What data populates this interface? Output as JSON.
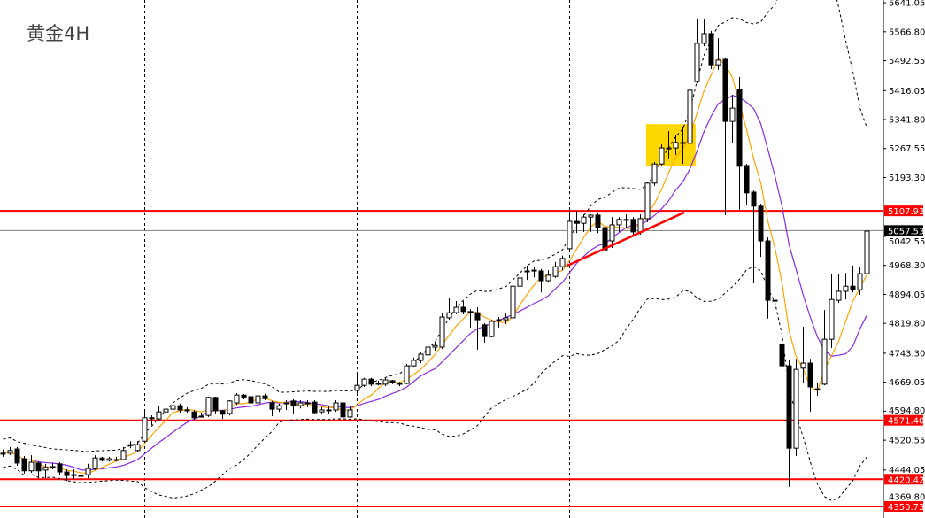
{
  "title": "黄金4H",
  "chart_data": {
    "type": "candlestick",
    "title": "黄金4H",
    "ylim": [
      4344,
      5648
    ],
    "y_ticks": [
      "5641.05",
      "5566.80",
      "5492.55",
      "5416.05",
      "5341.80",
      "5267.55",
      "5193.30",
      "5042.55",
      "4968.30",
      "4894.05",
      "4819.80",
      "4743.30",
      "4669.05",
      "4594.80",
      "4520.55",
      "4444.05",
      "4369.80"
    ],
    "candles_ohlc": [
      [
        4487,
        4496,
        4478,
        4487
      ],
      [
        4487,
        4503,
        4482,
        4494
      ],
      [
        4498,
        4503,
        4455,
        4462
      ],
      [
        4473,
        4480,
        4435,
        4442
      ],
      [
        4442,
        4482,
        4437,
        4464
      ],
      [
        4462,
        4466,
        4423,
        4442
      ],
      [
        4444,
        4460,
        4423,
        4451
      ],
      [
        4453,
        4462,
        4446,
        4453
      ],
      [
        4460,
        4464,
        4432,
        4439
      ],
      [
        4439,
        4446,
        4416,
        4430
      ],
      [
        4432,
        4446,
        4421,
        4432
      ],
      [
        4430,
        4442,
        4410,
        4430
      ],
      [
        4432,
        4460,
        4423,
        4448
      ],
      [
        4448,
        4482,
        4444,
        4475
      ],
      [
        4475,
        4478,
        4466,
        4469
      ],
      [
        4469,
        4478,
        4466,
        4473
      ],
      [
        4471,
        4478,
        4466,
        4471
      ],
      [
        4471,
        4503,
        4469,
        4494
      ],
      [
        4509,
        4518,
        4500,
        4509
      ],
      [
        4494,
        4518,
        4489,
        4509
      ],
      [
        4518,
        4598,
        4514,
        4578
      ],
      [
        4578,
        4584,
        4559,
        4578
      ],
      [
        4575,
        4609,
        4571,
        4593
      ],
      [
        4593,
        4618,
        4589,
        4600
      ],
      [
        4600,
        4623,
        4593,
        4609
      ],
      [
        4609,
        4614,
        4591,
        4598
      ],
      [
        4598,
        4605,
        4591,
        4598
      ],
      [
        4593,
        4598,
        4573,
        4578
      ],
      [
        4582,
        4591,
        4578,
        4582
      ],
      [
        4584,
        4632,
        4580,
        4630
      ],
      [
        4630,
        4632,
        4589,
        4596
      ],
      [
        4596,
        4598,
        4575,
        4587
      ],
      [
        4589,
        4623,
        4584,
        4621
      ],
      [
        4616,
        4641,
        4611,
        4636
      ],
      [
        4636,
        4639,
        4625,
        4630
      ],
      [
        4632,
        4641,
        4611,
        4616
      ],
      [
        4616,
        4639,
        4609,
        4634
      ],
      [
        4634,
        4639,
        4623,
        4627
      ],
      [
        4616,
        4621,
        4582,
        4600
      ],
      [
        4600,
        4614,
        4593,
        4609
      ],
      [
        4616,
        4623,
        4598,
        4616
      ],
      [
        4621,
        4625,
        4587,
        4609
      ],
      [
        4609,
        4623,
        4602,
        4616
      ],
      [
        4616,
        4623,
        4605,
        4616
      ],
      [
        4618,
        4623,
        4587,
        4591
      ],
      [
        4593,
        4605,
        4589,
        4598
      ],
      [
        4598,
        4607,
        4589,
        4598
      ],
      [
        4598,
        4623,
        4593,
        4616
      ],
      [
        4616,
        4621,
        4537,
        4580
      ],
      [
        4580,
        4607,
        4578,
        4598
      ],
      [
        4648,
        4689,
        4639,
        4661
      ],
      [
        4661,
        4680,
        4657,
        4677
      ],
      [
        4677,
        4680,
        4659,
        4664
      ],
      [
        4666,
        4673,
        4661,
        4666
      ],
      [
        4664,
        4680,
        4659,
        4675
      ],
      [
        4673,
        4675,
        4664,
        4668
      ],
      [
        4666,
        4670,
        4659,
        4666
      ],
      [
        4666,
        4716,
        4664,
        4711
      ],
      [
        4711,
        4732,
        4709,
        4725
      ],
      [
        4725,
        4745,
        4718,
        4741
      ],
      [
        4739,
        4773,
        4734,
        4759
      ],
      [
        4759,
        4773,
        4750,
        4763
      ],
      [
        4759,
        4845,
        4754,
        4836
      ],
      [
        4834,
        4886,
        4829,
        4847
      ],
      [
        4847,
        4877,
        4843,
        4861
      ],
      [
        4861,
        4877,
        4843,
        4850
      ],
      [
        4850,
        4856,
        4809,
        4850
      ],
      [
        4847,
        4861,
        4752,
        4829
      ],
      [
        4816,
        4820,
        4770,
        4786
      ],
      [
        4786,
        4829,
        4784,
        4825
      ],
      [
        4829,
        4836,
        4809,
        4829
      ],
      [
        4829,
        4847,
        4818,
        4834
      ],
      [
        4834,
        4920,
        4827,
        4915
      ],
      [
        4915,
        4940,
        4911,
        4936
      ],
      [
        4954,
        4968,
        4931,
        4954
      ],
      [
        4956,
        4963,
        4938,
        4954
      ],
      [
        4954,
        4959,
        4899,
        4929
      ],
      [
        4929,
        4956,
        4924,
        4943
      ],
      [
        4940,
        4977,
        4936,
        4965
      ],
      [
        4965,
        4993,
        4956,
        4986
      ],
      [
        5011,
        5108,
        5006,
        5081
      ],
      [
        5081,
        5108,
        5051,
        5076
      ],
      [
        5076,
        5099,
        5054,
        5092
      ],
      [
        5092,
        5099,
        5054,
        5097
      ],
      [
        5097,
        5104,
        5051,
        5065
      ],
      [
        5065,
        5070,
        4990,
        5008
      ],
      [
        5031,
        5092,
        5013,
        5072
      ],
      [
        5072,
        5092,
        5054,
        5086
      ],
      [
        5086,
        5099,
        5063,
        5086
      ],
      [
        5086,
        5092,
        5047,
        5054
      ],
      [
        5054,
        5099,
        5047,
        5088
      ],
      [
        5088,
        5183,
        5079,
        5179
      ],
      [
        5179,
        5233,
        5172,
        5228
      ],
      [
        5228,
        5278,
        5224,
        5269
      ],
      [
        5269,
        5312,
        5240,
        5269
      ],
      [
        5269,
        5303,
        5251,
        5283
      ],
      [
        5283,
        5324,
        5228,
        5283
      ],
      [
        5281,
        5421,
        5274,
        5417
      ],
      [
        5439,
        5598,
        5435,
        5537
      ],
      [
        5537,
        5598,
        5530,
        5562
      ],
      [
        5562,
        5569,
        5471,
        5482
      ],
      [
        5482,
        5550,
        5469,
        5494
      ],
      [
        5496,
        5501,
        5097,
        5337
      ],
      [
        5337,
        5405,
        5281,
        5371
      ],
      [
        5419,
        5451,
        5111,
        5222
      ],
      [
        5224,
        5228,
        5122,
        5154
      ],
      [
        5156,
        5160,
        4922,
        5120
      ],
      [
        5120,
        5126,
        4990,
        5031
      ],
      [
        5031,
        5040,
        4832,
        4879
      ],
      [
        4879,
        4899,
        4809,
        4879
      ],
      [
        4766,
        4791,
        4582,
        4711
      ],
      [
        4711,
        4727,
        4401,
        4500
      ],
      [
        4500,
        4729,
        4480,
        4702
      ],
      [
        4705,
        4811,
        4668,
        4718
      ],
      [
        4718,
        4729,
        4593,
        4657
      ],
      [
        4652,
        4668,
        4634,
        4652
      ],
      [
        4664,
        4854,
        4661,
        4779
      ],
      [
        4779,
        4945,
        4757,
        4881
      ],
      [
        4879,
        4947,
        4872,
        4902
      ],
      [
        4902,
        4949,
        4881,
        4915
      ],
      [
        4915,
        4968,
        4899,
        4906
      ],
      [
        4906,
        4963,
        4893,
        4947
      ],
      [
        4947,
        5063,
        4920,
        5056
      ]
    ],
    "indicators": {
      "ma_fast": {
        "color": "#FFA500"
      },
      "ma_slow": {
        "color": "#8A2BE2"
      },
      "bollinger_bands": {
        "color": "#000000",
        "style": "dashed"
      }
    },
    "horizontal_levels": [
      {
        "label": "5107.93",
        "price": 5107.93,
        "color": "#FF0000"
      },
      {
        "label": "4571.40",
        "price": 4571.4,
        "color": "#FF0000"
      },
      {
        "label": "4420.42",
        "price": 4420.42,
        "color": "#FF0000"
      },
      {
        "label": "4350.73",
        "price": 4350.73,
        "color": "#FF0000"
      }
    ],
    "current_price": {
      "label": "5057.53",
      "price": 5057.53,
      "line_color": "#808080"
    },
    "trendline": {
      "from": {
        "candle": 79.6,
        "price": 4967
      },
      "to": {
        "candle": 96.2,
        "price": 5104
      },
      "color": "#FF0000"
    },
    "highlight_box": {
      "candle_from": 90.8,
      "candle_to": 97.8,
      "price_top": 5330,
      "price_bottom": 5224,
      "color": "#FFD700"
    },
    "period_separators_at_candle": [
      20,
      50,
      80,
      110
    ],
    "grid": false
  }
}
